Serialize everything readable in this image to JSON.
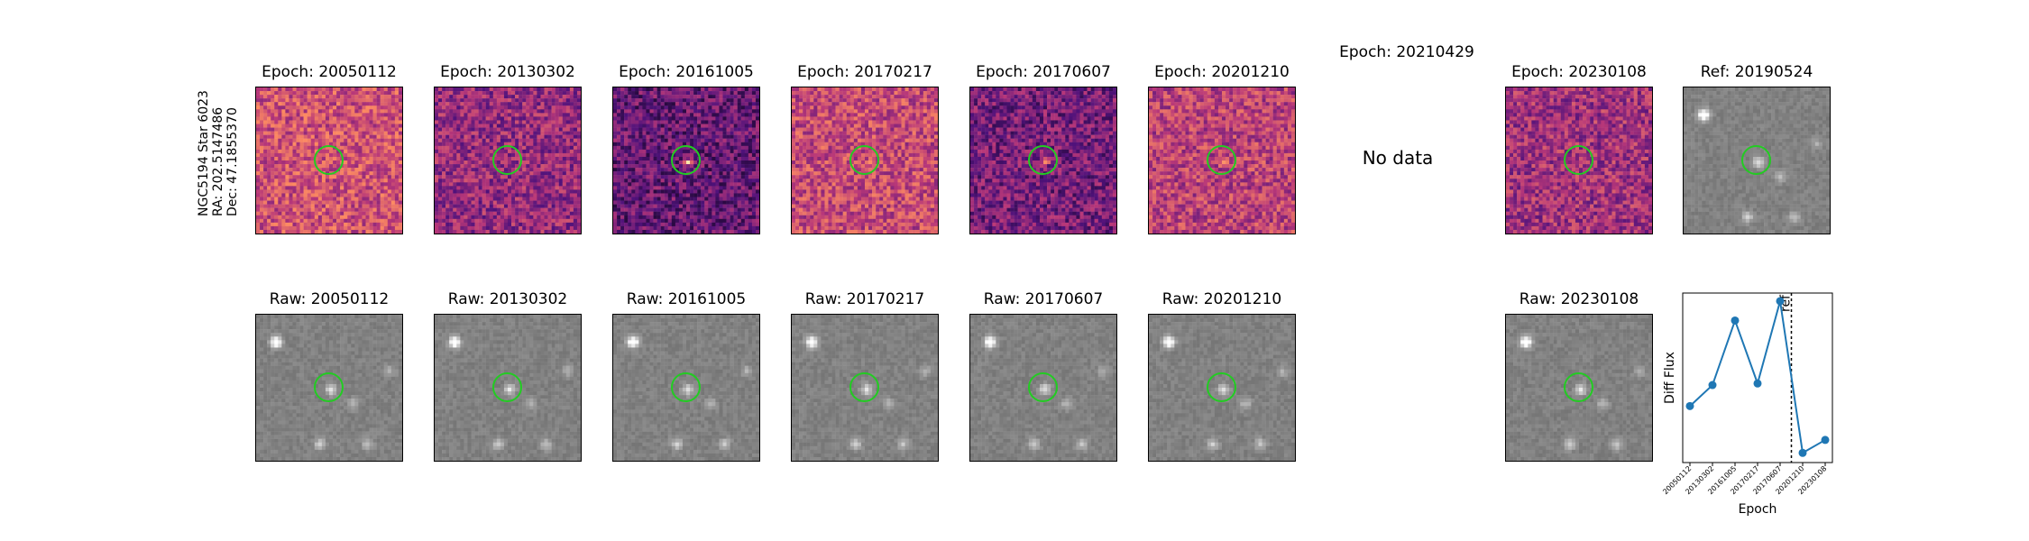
{
  "row_label": {
    "line1": "NGC5194 Star 6023",
    "line2": "RA: 202.5147486",
    "line3": "Dec: 47.1855370"
  },
  "diff_panels": [
    {
      "title": "Epoch: 20050112",
      "cmap": "magma",
      "level": 0.58
    },
    {
      "title": "Epoch: 20130302",
      "cmap": "magma",
      "level": 0.42
    },
    {
      "title": "Epoch: 20161005",
      "cmap": "magma",
      "level": 0.3
    },
    {
      "title": "Epoch: 20170217",
      "cmap": "magma",
      "level": 0.55
    },
    {
      "title": "Epoch: 20170607",
      "cmap": "magma",
      "level": 0.34
    },
    {
      "title": "Epoch: 20201210",
      "cmap": "magma",
      "level": 0.52
    }
  ],
  "missing_panel": {
    "title": "Epoch: 20210429",
    "text": "No data"
  },
  "diff_panel_last": {
    "title": "Epoch: 20230108",
    "cmap": "magma",
    "level": 0.45
  },
  "ref_panel": {
    "title": "Ref: 20190524"
  },
  "raw_panels": [
    {
      "title": "Raw: 20050112"
    },
    {
      "title": "Raw: 20130302"
    },
    {
      "title": "Raw: 20161005"
    },
    {
      "title": "Raw: 20170217"
    },
    {
      "title": "Raw: 20170607"
    },
    {
      "title": "Raw: 20201210"
    },
    {
      "title": "Raw: 20230108"
    }
  ],
  "colors": {
    "circle": "#22cc22",
    "line": "#1f77b4",
    "ref_line": "#000000"
  },
  "chart_data": {
    "type": "line",
    "x": [
      "20050112",
      "20130302",
      "20161005",
      "20170217",
      "20170607",
      "20201210",
      "20230108"
    ],
    "values": [
      0.15,
      0.28,
      0.68,
      0.29,
      0.8,
      -0.14,
      -0.06
    ],
    "ylim": [
      -0.2,
      0.85
    ],
    "xlabel": "Epoch",
    "ylabel": "Diff Flux",
    "ref_label": "ref",
    "ref_between": [
      "20170607",
      "20201210"
    ]
  }
}
